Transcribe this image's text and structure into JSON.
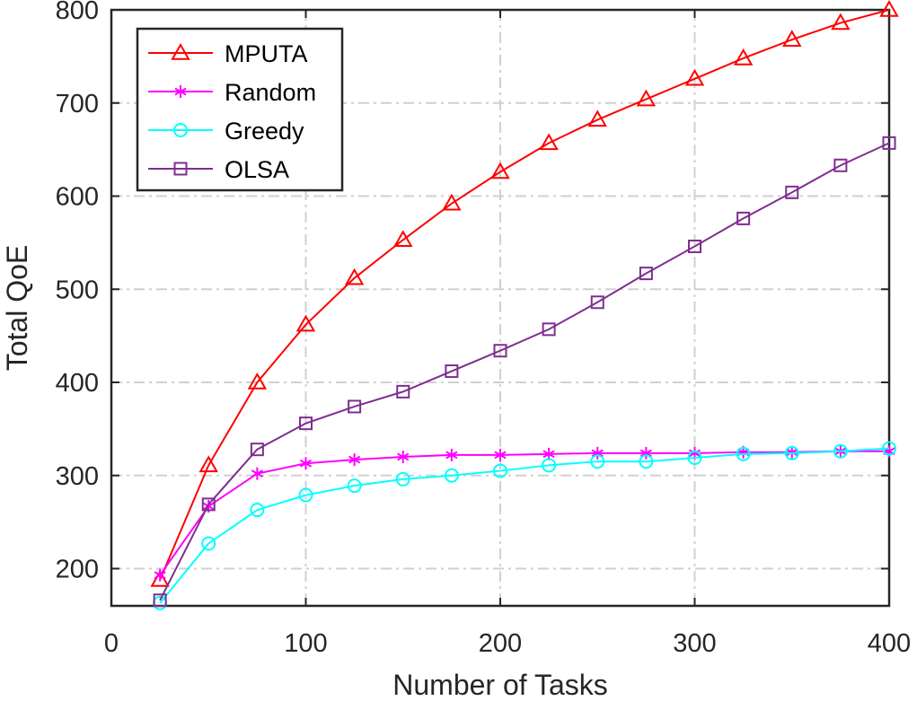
{
  "chart_data": {
    "type": "line",
    "xlabel": "Number of Tasks",
    "ylabel": "Total QoE",
    "xlim": [
      0,
      400
    ],
    "ylim": [
      160,
      800
    ],
    "xticks": [
      0,
      100,
      200,
      300,
      400
    ],
    "yticks": [
      200,
      300,
      400,
      500,
      600,
      700,
      800
    ],
    "grid": true,
    "legend_position": "top-left",
    "x": [
      25,
      50,
      75,
      100,
      125,
      150,
      175,
      200,
      225,
      250,
      275,
      300,
      325,
      350,
      375,
      400
    ],
    "series": [
      {
        "name": "MPUTA",
        "color": "#ff0000",
        "marker": "triangle",
        "values": [
          188,
          311,
          400,
          462,
          512,
          553,
          592,
          626,
          657,
          682,
          704,
          726,
          748,
          768,
          786,
          800
        ]
      },
      {
        "name": "Random",
        "color": "#ff00ff",
        "marker": "asterisk",
        "values": [
          193,
          267,
          302,
          313,
          317,
          320,
          322,
          322,
          323,
          324,
          324,
          324,
          325,
          325,
          326,
          326
        ]
      },
      {
        "name": "Greedy",
        "color": "#00ffff",
        "marker": "circle",
        "values": [
          163,
          227,
          263,
          279,
          289,
          296,
          300,
          305,
          311,
          315,
          315,
          319,
          323,
          324,
          326,
          329
        ]
      },
      {
        "name": "OLSA",
        "color": "#7e2f8e",
        "marker": "square",
        "values": [
          166,
          269,
          328,
          356,
          374,
          390,
          412,
          434,
          457,
          486,
          517,
          546,
          576,
          604,
          633,
          657
        ]
      }
    ]
  }
}
